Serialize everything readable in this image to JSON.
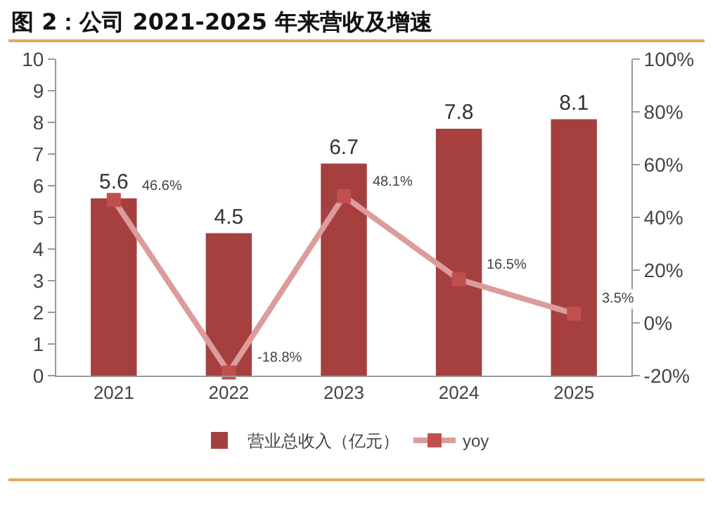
{
  "chart_data": {
    "type": "bar",
    "title": "图 2：公司 2021-2025 年来营收及增速",
    "categories": [
      "2021",
      "2022",
      "2023",
      "2024",
      "2025"
    ],
    "series": [
      {
        "name": "营业总收入（亿元）",
        "color": "#a5403f",
        "values": [
          5.6,
          4.5,
          6.7,
          7.8,
          8.1
        ],
        "value_labels": [
          "5.6",
          "4.5",
          "6.7",
          "7.8",
          "8.1"
        ]
      },
      {
        "name": "yoy",
        "type": "line",
        "axis": "y2",
        "color": "#dc9c9c",
        "marker": "square",
        "values": [
          46.6,
          -18.8,
          48.1,
          16.5,
          3.5
        ],
        "value_labels": [
          "46.6%",
          "-18.8%",
          "48.1%",
          "16.5%",
          "3.5%"
        ]
      }
    ],
    "ylim": [
      0,
      10
    ],
    "yticks": [
      0,
      1,
      2,
      3,
      4,
      5,
      6,
      7,
      8,
      9,
      10
    ],
    "y2lim": [
      -20,
      100
    ],
    "y2ticks": [
      {
        "value": -20,
        "label": "-20%"
      },
      {
        "value": 0,
        "label": "0%"
      },
      {
        "value": 20,
        "label": "20%"
      },
      {
        "value": 40,
        "label": "40%"
      },
      {
        "value": 60,
        "label": "60%"
      },
      {
        "value": 80,
        "label": "80%"
      },
      {
        "value": 100,
        "label": "100%"
      }
    ],
    "grid": false,
    "legend": "bottom"
  }
}
